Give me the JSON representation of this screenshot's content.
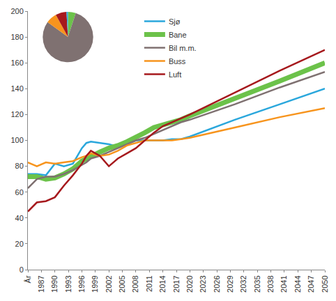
{
  "chart_data": [
    {
      "type": "line",
      "x": [
        1984,
        1986,
        1988,
        1990,
        1992,
        1994,
        1996,
        1997,
        1998,
        2000,
        2002,
        2004,
        2006,
        2008,
        2010,
        2012,
        2014,
        2016,
        2018,
        2020,
        2030,
        2040,
        2050
      ],
      "series": [
        {
          "name": "Sjø",
          "color": "#2aa7dc",
          "values": [
            74,
            74,
            73,
            82,
            80,
            82,
            94,
            98,
            99,
            98,
            97,
            95,
            97,
            100,
            100,
            100,
            100,
            101,
            101,
            103,
            116,
            128,
            140
          ]
        },
        {
          "name": "Bane",
          "color": "#6cc24a",
          "values": [
            72,
            72,
            70,
            71,
            74,
            78,
            84,
            86,
            88,
            91,
            94,
            96,
            99,
            102,
            106,
            110,
            112,
            114,
            116,
            119,
            132,
            146,
            160
          ]
        },
        {
          "name": "Bil m.m.",
          "color": "#7f7171",
          "values": [
            63,
            70,
            72,
            72,
            74,
            77,
            81,
            83,
            86,
            88,
            91,
            94,
            97,
            100,
            102,
            105,
            108,
            111,
            114,
            116,
            128,
            141,
            153
          ]
        },
        {
          "name": "Buss",
          "color": "#f7941d",
          "values": [
            83,
            80,
            83,
            82,
            83,
            84,
            87,
            88,
            90,
            88,
            89,
            92,
            96,
            98,
            100,
            100,
            100,
            100,
            101,
            102,
            110,
            118,
            125
          ]
        },
        {
          "name": "Luft",
          "color": "#a6191d",
          "values": [
            45,
            52,
            53,
            56,
            65,
            73,
            82,
            88,
            92,
            88,
            80,
            86,
            90,
            94,
            100,
            106,
            111,
            114,
            117,
            120,
            137,
            154,
            170
          ]
        }
      ],
      "xlim": [
        1984,
        2050
      ],
      "xticks": [
        {
          "value": 1984,
          "label": "År"
        },
        1987,
        1990,
        1993,
        1996,
        1999,
        2002,
        2005,
        2008,
        2011,
        2014,
        2017,
        2020,
        2023,
        2026,
        2029,
        2032,
        2035,
        2038,
        2041,
        2044,
        2047,
        2050
      ],
      "ylim": [
        0,
        200
      ],
      "yticks": [
        0,
        20,
        40,
        60,
        80,
        100,
        120,
        140,
        160,
        180,
        200
      ],
      "grid": false,
      "legend": "top"
    },
    {
      "type": "pie",
      "categories": [
        "Bane",
        "Bil m.m.",
        "Buss",
        "Luft",
        "Sjø"
      ],
      "values": [
        5,
        80,
        7,
        7,
        1
      ],
      "colors": [
        "#6cc24a",
        "#7f7171",
        "#f7941d",
        "#a6191d",
        "#2aa7dc"
      ]
    }
  ]
}
